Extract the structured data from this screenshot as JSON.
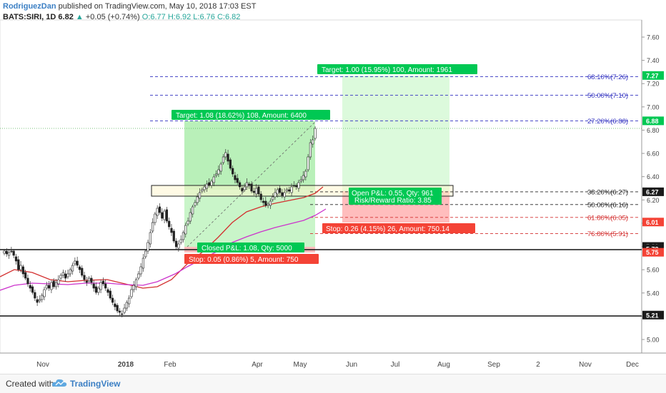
{
  "header": {
    "author": "RodriguezDan",
    "published": "published on TradingView.com, May 10, 2018 17:03 EST",
    "symbol_line": "BATS:SIRI, 1D",
    "last": "6.82",
    "change": "+0.05 (+0.74%)",
    "ohlc": "O:6.77 H:6.92 L:6.76 C:6.82"
  },
  "footer": {
    "created_with": "Created with",
    "brand": "TradingView"
  },
  "price_axis": {
    "ticks": [
      "7.60",
      "7.40",
      "7.20",
      "7.00",
      "6.80",
      "6.60",
      "6.40",
      "6.20",
      "6.00",
      "5.80",
      "5.60",
      "5.40",
      "5.20",
      "5.00"
    ],
    "badges": [
      {
        "text": "7.27",
        "color": "#00c853"
      },
      {
        "text": "6.88",
        "color": "#00c853"
      },
      {
        "text": "6.27",
        "color": "#1a1a1a"
      },
      {
        "text": "6.01",
        "color": "#f44336"
      },
      {
        "text": "5.80",
        "color": "#1a1a1a"
      },
      {
        "text": "5.78",
        "color": "#1a1a1a"
      },
      {
        "text": "5.75",
        "color": "#f44336"
      },
      {
        "text": "5.21",
        "color": "#1a1a1a"
      }
    ]
  },
  "time_axis": {
    "labels": [
      "Nov",
      "2018",
      "Feb",
      "Apr",
      "May",
      "Jun",
      "Jul",
      "Aug",
      "Sep",
      "2",
      "Nov",
      "Dec"
    ]
  },
  "fib_levels": [
    {
      "text": "68.10%(7.26)",
      "price": 7.26,
      "color": "#3030c0"
    },
    {
      "text": "50.00%(7.10)",
      "price": 7.1,
      "color": "#3030c0"
    },
    {
      "text": "27.20%(6.88)",
      "price": 6.88,
      "color": "#3030c0"
    },
    {
      "text": "38.20%(6.27)",
      "price": 6.27,
      "color": "#222222"
    },
    {
      "text": "50.00%(6.16)",
      "price": 6.16,
      "color": "#222222"
    },
    {
      "text": "61.80%(6.05)",
      "price": 6.05,
      "color": "#d32f2f"
    },
    {
      "text": "76.80%(5.91)",
      "price": 5.91,
      "color": "#d32f2f"
    }
  ],
  "position_labels": {
    "target_long": "Target: 1.08 (18.62%) 108, Amount: 6400",
    "target_proj": "Target: 1.00 (15.95%) 100, Amount: 1961",
    "closed_pl": "Closed P&L: 1.08, Qty: 5000",
    "stop_long": "Stop: 0.05 (0.86%) 5, Amount: 750",
    "open_pl": "Open P&L: 0.55, Qty: 961",
    "risk_reward": "Risk/Reward Ratio: 3.85",
    "stop_proj": "Stop: 0.26 (4.15%) 26, Amount: 750.14"
  },
  "colors": {
    "profit_zone": "#b9f0b9",
    "profit_zone_light": "#dcfadc",
    "loss_zone": "#ffbdbd",
    "label_green": "#00c853",
    "label_red": "#f44336",
    "ma_red": "#d32f2f",
    "ma_pink": "#cc33cc",
    "fib_blue": "#3030c0"
  }
}
